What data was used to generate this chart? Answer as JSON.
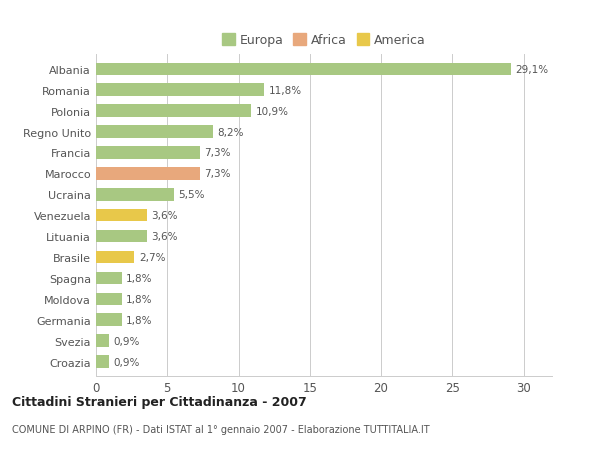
{
  "categories": [
    "Albania",
    "Romania",
    "Polonia",
    "Regno Unito",
    "Francia",
    "Marocco",
    "Ucraina",
    "Venezuela",
    "Lituania",
    "Brasile",
    "Spagna",
    "Moldova",
    "Germania",
    "Svezia",
    "Croazia"
  ],
  "values": [
    29.1,
    11.8,
    10.9,
    8.2,
    7.3,
    7.3,
    5.5,
    3.6,
    3.6,
    2.7,
    1.8,
    1.8,
    1.8,
    0.9,
    0.9
  ],
  "labels": [
    "29,1%",
    "11,8%",
    "10,9%",
    "8,2%",
    "7,3%",
    "7,3%",
    "5,5%",
    "3,6%",
    "3,6%",
    "2,7%",
    "1,8%",
    "1,8%",
    "1,8%",
    "0,9%",
    "0,9%"
  ],
  "colors": [
    "#a8c882",
    "#a8c882",
    "#a8c882",
    "#a8c882",
    "#a8c882",
    "#e8a87c",
    "#a8c882",
    "#e8c84a",
    "#a8c882",
    "#e8c84a",
    "#a8c882",
    "#a8c882",
    "#a8c882",
    "#a8c882",
    "#a8c882"
  ],
  "legend_colors": {
    "Europa": "#a8c882",
    "Africa": "#e8a87c",
    "America": "#e8c84a"
  },
  "title": "Cittadini Stranieri per Cittadinanza - 2007",
  "subtitle": "COMUNE DI ARPINO (FR) - Dati ISTAT al 1° gennaio 2007 - Elaborazione TUTTITALIA.IT",
  "xlim": [
    0,
    32
  ],
  "xticks": [
    0,
    5,
    10,
    15,
    20,
    25,
    30
  ],
  "background_color": "#ffffff",
  "bar_height": 0.6,
  "grid_color": "#cccccc",
  "text_color": "#555555",
  "label_fontsize": 7.5,
  "ytick_fontsize": 8.0,
  "xtick_fontsize": 8.5
}
